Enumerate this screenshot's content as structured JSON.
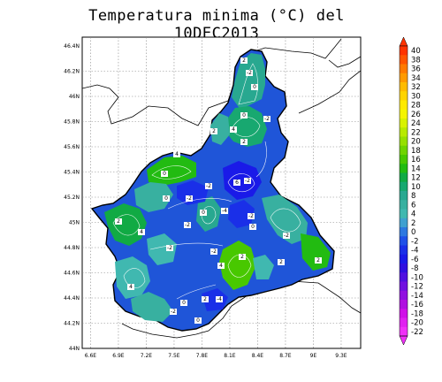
{
  "title": "Temperatura minima (°C) del 10DEC2013",
  "map": {
    "x_ticks": [
      "6.6E",
      "6.9E",
      "7.2E",
      "7.5E",
      "7.8E",
      "8.1E",
      "8.4E",
      "8.7E",
      "9E",
      "9.3E"
    ],
    "y_ticks": [
      "46.4N",
      "46.2N",
      "46N",
      "45.8N",
      "45.6N",
      "45.4N",
      "45.2N",
      "45N",
      "44.8N",
      "44.6N",
      "44.4N",
      "44.2N",
      "44N"
    ],
    "isotherm_labels": [
      "2",
      "-2",
      "0",
      "0",
      "4",
      "2",
      "-2",
      "2",
      "4",
      "0",
      "-2",
      "6",
      "-2",
      "-4",
      "-2",
      "0",
      "-2",
      "4",
      "2",
      "-2",
      "0",
      "2",
      "4",
      "-2",
      "2",
      "-2",
      "0",
      "-2",
      "4",
      "0",
      "2",
      "-4",
      "0",
      "-2",
      "2"
    ]
  },
  "colorbar": {
    "labels": [
      "40",
      "38",
      "36",
      "34",
      "32",
      "30",
      "28",
      "26",
      "24",
      "22",
      "20",
      "18",
      "16",
      "14",
      "12",
      "10",
      "8",
      "6",
      "4",
      "2",
      "0",
      "-2",
      "-4",
      "-6",
      "-8",
      "-10",
      "-12",
      "-14",
      "-16",
      "-18",
      "-20",
      "-22"
    ],
    "colors": [
      "#ff3300",
      "#ff5500",
      "#ff7a00",
      "#ff9a00",
      "#ffbb00",
      "#ffd400",
      "#ffea00",
      "#f5f500",
      "#d9f200",
      "#b8ea00",
      "#96e000",
      "#6fd400",
      "#48c800",
      "#22bb11",
      "#11aa44",
      "#18a870",
      "#28a890",
      "#38b0a0",
      "#40b8b0",
      "#3fa0d0",
      "#2d78e0",
      "#1f50e8",
      "#1a2fe8",
      "#1a1ae8",
      "#3010e0",
      "#5010e0",
      "#7010e0",
      "#9010e0",
      "#b010e0",
      "#d010e8",
      "#e020f0",
      "#f030f8"
    ]
  }
}
